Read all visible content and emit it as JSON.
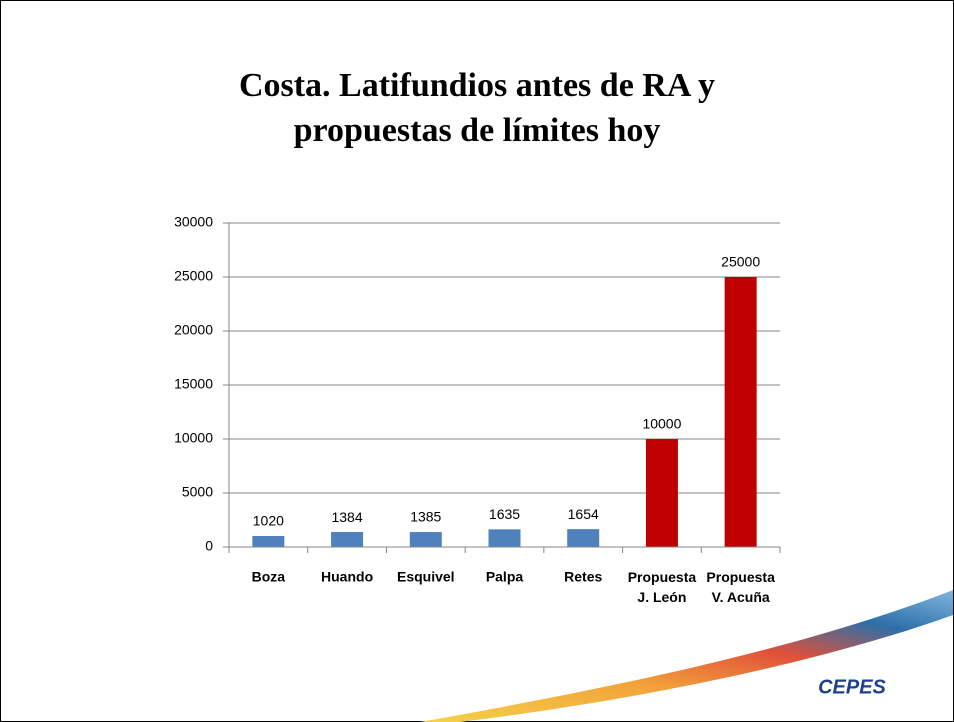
{
  "chart_data": {
    "type": "bar",
    "title": "Costa. Latifundios antes de RA y propuestas de límites hoy",
    "categories": [
      "Boza",
      "Huando",
      "Esquivel",
      "Palpa",
      "Retes",
      "Propuesta J. León",
      "Propuesta V. Acuña"
    ],
    "values": [
      1020,
      1384,
      1385,
      1635,
      1654,
      10000,
      25000
    ],
    "colors": [
      "#4f81bd",
      "#4f81bd",
      "#4f81bd",
      "#4f81bd",
      "#4f81bd",
      "#c00000",
      "#c00000"
    ],
    "ylim": [
      0,
      30000
    ],
    "yticks": [
      0,
      5000,
      10000,
      15000,
      20000,
      25000,
      30000
    ],
    "grid": true
  },
  "logo": "CEPES"
}
